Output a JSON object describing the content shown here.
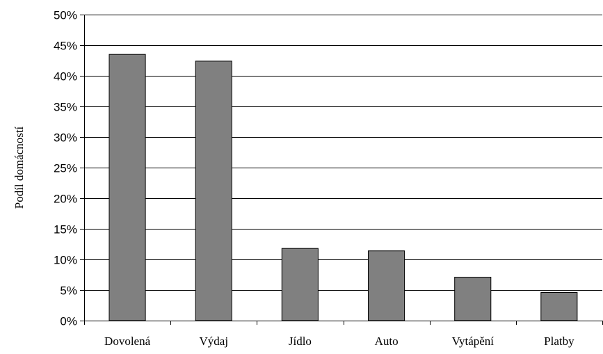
{
  "chart_data": {
    "type": "bar",
    "title": "",
    "xlabel": "",
    "ylabel": "Podíl domácností",
    "categories": [
      "Dovolená",
      "Výdaj",
      "Jídlo",
      "Auto",
      "Vytápění",
      "Platby"
    ],
    "values": [
      43.5,
      42.4,
      11.8,
      11.4,
      7.1,
      4.6
    ],
    "ylim": [
      0,
      50
    ],
    "yticks": [
      0,
      5,
      10,
      15,
      20,
      25,
      30,
      35,
      40,
      45,
      50
    ],
    "ytick_labels": [
      "0%",
      "5%",
      "10%",
      "15%",
      "20%",
      "25%",
      "30%",
      "35%",
      "40%",
      "45%",
      "50%"
    ],
    "grid": true,
    "legend": "none",
    "bar_color": "#808080"
  }
}
